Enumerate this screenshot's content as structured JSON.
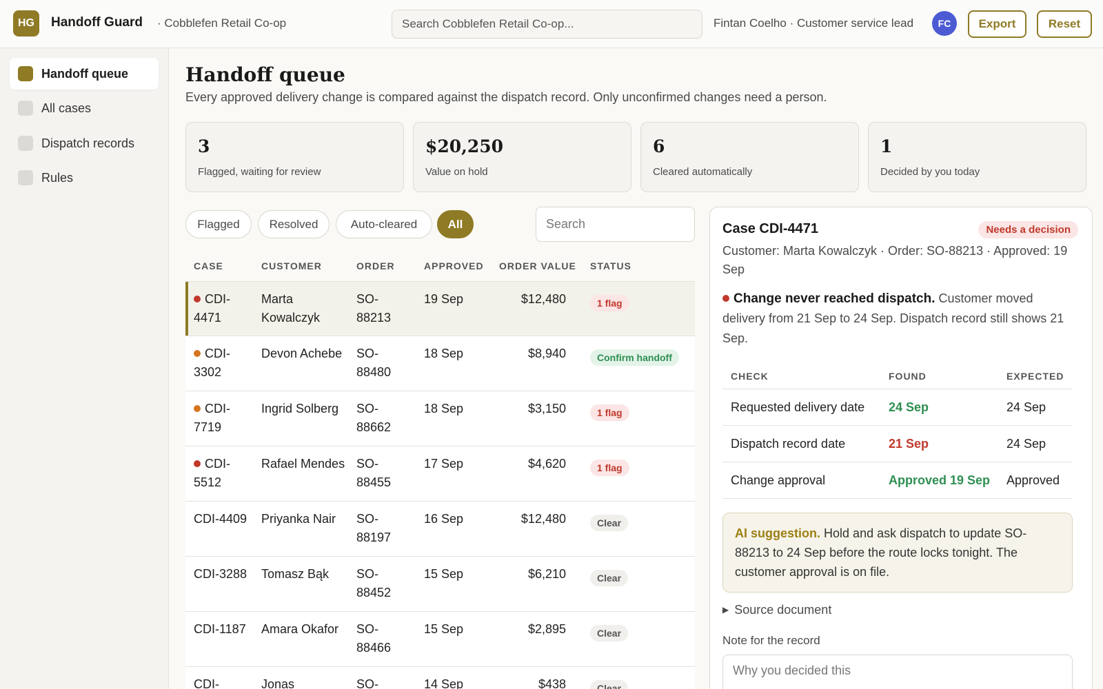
{
  "app": {
    "logo": "HG",
    "name": "Handoff Guard",
    "org": "· Cobblefen Retail Co-op"
  },
  "header": {
    "search_placeholder": "Search Cobblefen Retail Co-op...",
    "user": "Fintan Coelho · Customer service lead",
    "avatar": "FC",
    "export_label": "Export",
    "reset_label": "Reset"
  },
  "sidebar": {
    "items": [
      {
        "label": "Handoff queue",
        "active": true
      },
      {
        "label": "All cases"
      },
      {
        "label": "Dispatch records"
      },
      {
        "label": "Rules"
      }
    ]
  },
  "page": {
    "title": "Handoff queue",
    "subtitle": "Every approved delivery change is compared against the dispatch record. Only unconfirmed changes need a person."
  },
  "stats": [
    {
      "value": "3",
      "label": "Flagged, waiting for review"
    },
    {
      "value": "$20,250",
      "label": "Value on hold"
    },
    {
      "value": "6",
      "label": "Cleared automatically"
    },
    {
      "value": "1",
      "label": "Decided by you today"
    }
  ],
  "filters": {
    "pills": [
      "Flagged",
      "Resolved",
      "Auto-cleared",
      "All"
    ],
    "active": "All",
    "search_placeholder": "Search"
  },
  "table": {
    "headers": [
      "CASE",
      "CUSTOMER",
      "ORDER",
      "APPROVED",
      "ORDER VALUE",
      "STATUS"
    ],
    "rows": [
      {
        "case": "CDI-4471",
        "customer": "Marta Kowalczyk",
        "order": "SO-88213",
        "approved": "19 Sep",
        "value": "$12,480",
        "status": "1 flag",
        "kind": "flag",
        "dot": "#c0392b",
        "selected": true
      },
      {
        "case": "CDI-3302",
        "customer": "Devon Achebe",
        "order": "SO-88480",
        "approved": "18 Sep",
        "value": "$8,940",
        "status": "Confirm handoff",
        "kind": "confirm",
        "dot": "#d4741e"
      },
      {
        "case": "CDI-7719",
        "customer": "Ingrid Solberg",
        "order": "SO-88662",
        "approved": "18 Sep",
        "value": "$3,150",
        "status": "1 flag",
        "kind": "flag",
        "dot": "#d4741e"
      },
      {
        "case": "CDI-5512",
        "customer": "Rafael Mendes",
        "order": "SO-88455",
        "approved": "17 Sep",
        "value": "$4,620",
        "status": "1 flag",
        "kind": "flag",
        "dot": "#c0392b"
      },
      {
        "case": "CDI-4409",
        "customer": "Priyanka Nair",
        "order": "SO-88197",
        "approved": "16 Sep",
        "value": "$12,480",
        "status": "Clear",
        "kind": "clear",
        "dot": null
      },
      {
        "case": "CDI-3288",
        "customer": "Tomasz Bąk",
        "order": "SO-88452",
        "approved": "15 Sep",
        "value": "$6,210",
        "status": "Clear",
        "kind": "clear",
        "dot": null
      },
      {
        "case": "CDI-1187",
        "customer": "Amara Okafor",
        "order": "SO-88466",
        "approved": "15 Sep",
        "value": "$2,895",
        "status": "Clear",
        "kind": "clear",
        "dot": null
      },
      {
        "case": "CDI-",
        "customer": "Jonas",
        "order": "SO-",
        "approved": "14 Sep",
        "value": "$438",
        "status": "Clear",
        "kind": "clear",
        "dot": null
      }
    ]
  },
  "detail": {
    "title": "Case CDI-4471",
    "badge": "Needs a decision",
    "meta": "Customer: Marta Kowalczyk · Order: SO-88213 · Approved: 19 Sep",
    "alert_title": "Change never reached dispatch.",
    "alert_text": "Customer moved delivery from 21 Sep to 24 Sep. Dispatch record still shows 21 Sep.",
    "checks_headers": [
      "CHECK",
      "FOUND",
      "EXPECTED"
    ],
    "checks": [
      {
        "check": "Requested delivery date",
        "found": "24 Sep",
        "found_status": "ok",
        "expected": "24 Sep"
      },
      {
        "check": "Dispatch record date",
        "found": "21 Sep",
        "found_status": "bad",
        "expected": "24 Sep"
      },
      {
        "check": "Change approval",
        "found": "Approved 19 Sep",
        "found_status": "ok",
        "expected": "Approved"
      }
    ],
    "ai_label": "AI suggestion.",
    "ai_text": "Hold and ask dispatch to update SO-88213 to 24 Sep before the route locks tonight. The customer approval is on file.",
    "source_label": "Source document",
    "note_label": "Note for the record",
    "note_placeholder": "Why you decided this"
  },
  "colors": {
    "accent": "#8f7a25",
    "flag": "#c0392b",
    "warn": "#d4741e",
    "ok": "#2f8f52",
    "avatar": "#4c5bd4"
  }
}
